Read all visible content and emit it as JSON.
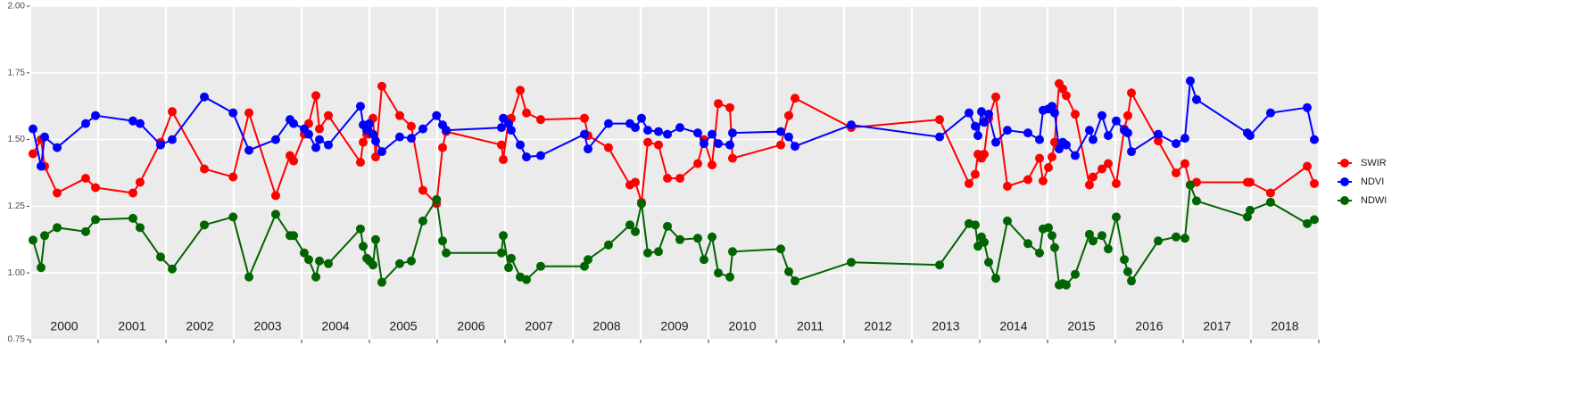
{
  "chart_data": {
    "type": "line",
    "legend": "right",
    "grid": true,
    "background": "#ebebeb",
    "xlim": [
      2000,
      2019
    ],
    "xticks": [
      2000,
      2001,
      2002,
      2003,
      2004,
      2005,
      2006,
      2007,
      2008,
      2009,
      2010,
      2011,
      2012,
      2013,
      2014,
      2015,
      2016,
      2017,
      2018,
      2019
    ],
    "year_labels": [
      2000,
      2001,
      2002,
      2003,
      2004,
      2005,
      2006,
      2007,
      2008,
      2009,
      2010,
      2011,
      2012,
      2013,
      2014,
      2015,
      2016,
      2017,
      2018
    ],
    "ylim": [
      0.75,
      2.0
    ],
    "yticks": [
      0.75,
      {
        "value": 1.0,
        "label": "1.00"
      },
      1.25,
      {
        "value": 1.5,
        "label": "1.50"
      },
      1.75,
      {
        "value": 2.0,
        "label": "2.00"
      }
    ],
    "x": [
      2000.039,
      2000.158,
      2000.211,
      2000.395,
      2000.816,
      2000.961,
      2001.513,
      2001.618,
      2001.921,
      2002.092,
      2002.566,
      2002.99,
      2003.224,
      2003.618,
      2003.829,
      2003.882,
      2004.039,
      2004.105,
      2004.211,
      2004.263,
      2004.395,
      2004.868,
      2004.908,
      2004.961,
      2005.0,
      2005.053,
      2005.092,
      2005.184,
      2005.447,
      2005.618,
      2005.789,
      2005.99,
      2006.079,
      2006.132,
      2006.947,
      2006.974,
      2007.053,
      2007.092,
      2007.224,
      2007.316,
      2007.526,
      2008.171,
      2008.224,
      2008.526,
      2008.842,
      2008.921,
      2009.013,
      2009.105,
      2009.263,
      2009.395,
      2009.579,
      2009.842,
      2009.934,
      2010.053,
      2010.145,
      2010.316,
      2010.355,
      2011.066,
      2011.184,
      2011.276,
      2012.105,
      2013.408,
      2013.842,
      2013.934,
      2013.974,
      2014.026,
      2014.066,
      2014.132,
      2014.237,
      2014.408,
      2014.711,
      2014.882,
      2014.934,
      2015.013,
      2015.066,
      2015.105,
      2015.171,
      2015.224,
      2015.276,
      2015.408,
      2015.618,
      2015.671,
      2015.803,
      2015.895,
      2016.013,
      2016.132,
      2016.184,
      2016.237,
      2016.632,
      2016.895,
      2017.026,
      2017.105,
      2017.197,
      2017.947,
      2017.987,
      2018.289,
      2018.829,
      2018.934
    ],
    "series": [
      {
        "name": "SWIR",
        "color": "#ff0000",
        "values": [
          1.447,
          1.5,
          1.4,
          1.3,
          1.355,
          1.32,
          1.3,
          1.34,
          1.49,
          1.605,
          1.39,
          1.36,
          1.6,
          1.29,
          1.44,
          1.42,
          1.52,
          1.56,
          1.665,
          1.54,
          1.59,
          1.415,
          1.49,
          1.52,
          1.52,
          1.58,
          1.435,
          1.7,
          1.59,
          1.55,
          1.31,
          1.26,
          1.47,
          1.53,
          1.48,
          1.425,
          1.575,
          1.58,
          1.685,
          1.6,
          1.575,
          1.58,
          1.515,
          1.47,
          1.33,
          1.34,
          1.265,
          1.49,
          1.48,
          1.355,
          1.355,
          1.41,
          1.5,
          1.405,
          1.635,
          1.62,
          1.43,
          1.48,
          1.59,
          1.655,
          1.545,
          1.575,
          1.335,
          1.37,
          1.445,
          1.43,
          1.445,
          1.58,
          1.66,
          1.325,
          1.35,
          1.43,
          1.345,
          1.395,
          1.435,
          1.49,
          1.71,
          1.69,
          1.665,
          1.595,
          1.33,
          1.36,
          1.39,
          1.41,
          1.335,
          1.54,
          1.59,
          1.675,
          1.495,
          1.375,
          1.41,
          1.33,
          1.34,
          1.34,
          1.34,
          1.3,
          1.4,
          1.335
        ]
      },
      {
        "name": "NDVI",
        "color": "#0000ff",
        "values": [
          1.54,
          1.4,
          1.51,
          1.47,
          1.56,
          1.59,
          1.57,
          1.56,
          1.48,
          1.5,
          1.66,
          1.6,
          1.46,
          1.5,
          1.575,
          1.56,
          1.54,
          1.52,
          1.47,
          1.5,
          1.48,
          1.625,
          1.555,
          1.535,
          1.56,
          1.52,
          1.495,
          1.455,
          1.51,
          1.505,
          1.54,
          1.59,
          1.555,
          1.535,
          1.545,
          1.58,
          1.56,
          1.535,
          1.48,
          1.435,
          1.44,
          1.52,
          1.465,
          1.56,
          1.56,
          1.545,
          1.58,
          1.535,
          1.53,
          1.52,
          1.545,
          1.525,
          1.485,
          1.52,
          1.485,
          1.48,
          1.525,
          1.53,
          1.51,
          1.475,
          1.555,
          1.51,
          1.6,
          1.55,
          1.515,
          1.605,
          1.565,
          1.595,
          1.49,
          1.535,
          1.525,
          1.5,
          1.61,
          1.615,
          1.625,
          1.6,
          1.465,
          1.49,
          1.48,
          1.44,
          1.535,
          1.5,
          1.59,
          1.515,
          1.57,
          1.535,
          1.525,
          1.455,
          1.52,
          1.485,
          1.505,
          1.72,
          1.65,
          1.525,
          1.515,
          1.6,
          1.62,
          1.5
        ]
      },
      {
        "name": "NDWI",
        "color": "#006400",
        "values": [
          1.123,
          1.02,
          1.14,
          1.17,
          1.155,
          1.2,
          1.205,
          1.17,
          1.06,
          1.015,
          1.18,
          1.21,
          0.985,
          1.22,
          1.14,
          1.14,
          1.075,
          1.05,
          0.985,
          1.045,
          1.035,
          1.165,
          1.1,
          1.055,
          1.045,
          1.03,
          1.125,
          0.965,
          1.035,
          1.045,
          1.195,
          1.275,
          1.12,
          1.075,
          1.075,
          1.14,
          1.02,
          1.055,
          0.985,
          0.975,
          1.025,
          1.025,
          1.05,
          1.105,
          1.18,
          1.155,
          1.26,
          1.075,
          1.08,
          1.175,
          1.125,
          1.13,
          1.05,
          1.135,
          1.0,
          0.985,
          1.08,
          1.09,
          1.005,
          0.97,
          1.04,
          1.03,
          1.185,
          1.18,
          1.1,
          1.135,
          1.115,
          1.04,
          0.98,
          1.195,
          1.11,
          1.075,
          1.165,
          1.17,
          1.14,
          1.095,
          0.955,
          0.96,
          0.955,
          0.995,
          1.145,
          1.12,
          1.14,
          1.09,
          1.21,
          1.05,
          1.005,
          0.97,
          1.12,
          1.135,
          1.13,
          1.33,
          1.27,
          1.21,
          1.235,
          1.265,
          1.185,
          1.2
        ]
      }
    ]
  }
}
